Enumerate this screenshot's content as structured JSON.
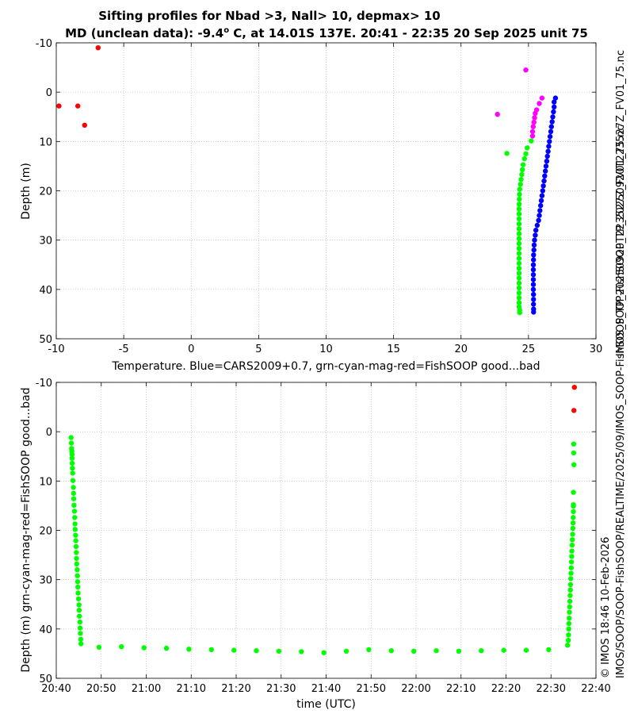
{
  "title_line1": "Sifting profiles for Nbad >3, Nall> 10, depmax> 10",
  "title_line2_prefix": "MD (unclean data): -9.4",
  "title_line2_degree": "o",
  "title_line2_suffix": " C, at 14.01S 137E. 20:41 - 22:35 20 Sep 2025 unit 75",
  "side_right_top": "IMOS_SOOP-FishSOOP_TP_20250920T223527Z_FV01_75.nc",
  "side_right_bottom_1": "© IMOS 18:46 10-Feb-2026",
  "side_right_bottom_2": "IMOS/SOOP/SOOP-FishSOOP/REALTIME/2025/09/IMOS_SOOP-FishSOOP_TP_20250920T223527Z_FV01_75.nc",
  "colors": {
    "blue": "#0000ff",
    "green": "#00ff00",
    "magenta": "#ff00ff",
    "red": "#ff0000",
    "grid": "#b0b0b0"
  },
  "chart_data": [
    {
      "type": "scatter",
      "title": "",
      "xlabel": "Temperature. Blue=CARS2009+0.7, grn-cyan-mag-red=FishSOOP good...bad",
      "ylabel": "Depth (m)",
      "xlim": [
        -10,
        30
      ],
      "ylim": [
        50,
        -10
      ],
      "xticks": [
        -10,
        -5,
        0,
        5,
        10,
        15,
        20,
        25,
        30
      ],
      "xticklabels": [
        "-10",
        "-5",
        "0",
        "5",
        "10",
        "15",
        "20",
        "25",
        "30"
      ],
      "yticks": [
        -10,
        0,
        10,
        20,
        30,
        40,
        50
      ],
      "yticklabels": [
        "-10",
        "0",
        "10",
        "20",
        "30",
        "40",
        "50"
      ],
      "grid": true,
      "series": [
        {
          "name": "CARS2009+0.7",
          "color": "blue",
          "points": [
            [
              27.0,
              1.2
            ],
            [
              26.9,
              2.0
            ],
            [
              26.9,
              3.0
            ],
            [
              26.85,
              4.0
            ],
            [
              26.8,
              5.0
            ],
            [
              26.75,
              6.0
            ],
            [
              26.7,
              7.0
            ],
            [
              26.65,
              8.0
            ],
            [
              26.6,
              9.0
            ],
            [
              26.55,
              10.0
            ],
            [
              26.5,
              11.0
            ],
            [
              26.45,
              12.0
            ],
            [
              26.4,
              13.0
            ],
            [
              26.35,
              14.0
            ],
            [
              26.3,
              15.0
            ],
            [
              26.25,
              16.0
            ],
            [
              26.2,
              17.0
            ],
            [
              26.15,
              18.0
            ],
            [
              26.1,
              19.0
            ],
            [
              26.05,
              20.0
            ],
            [
              26.0,
              21.0
            ],
            [
              25.95,
              22.0
            ],
            [
              25.9,
              23.0
            ],
            [
              25.85,
              24.0
            ],
            [
              25.8,
              25.0
            ],
            [
              25.75,
              26.0
            ],
            [
              25.65,
              27.0
            ],
            [
              25.55,
              28.0
            ],
            [
              25.5,
              29.0
            ],
            [
              25.45,
              30.0
            ],
            [
              25.42,
              31.0
            ],
            [
              25.4,
              32.0
            ],
            [
              25.38,
              33.0
            ],
            [
              25.37,
              34.0
            ],
            [
              25.36,
              35.0
            ],
            [
              25.36,
              36.0
            ],
            [
              25.36,
              37.0
            ],
            [
              25.36,
              38.0
            ],
            [
              25.36,
              39.0
            ],
            [
              25.36,
              40.0
            ],
            [
              25.37,
              41.0
            ],
            [
              25.37,
              42.0
            ],
            [
              25.37,
              43.0
            ],
            [
              25.38,
              44.0
            ],
            [
              25.38,
              44.6
            ]
          ]
        },
        {
          "name": "FishSOOP good",
          "color": "green",
          "points": [
            [
              23.4,
              12.4
            ],
            [
              24.9,
              11.3
            ],
            [
              24.8,
              12.5
            ],
            [
              24.7,
              13.5
            ],
            [
              24.6,
              14.7
            ],
            [
              24.55,
              15.7
            ],
            [
              24.5,
              16.7
            ],
            [
              24.45,
              17.7
            ],
            [
              24.4,
              18.7
            ],
            [
              24.35,
              19.7
            ],
            [
              24.33,
              20.7
            ],
            [
              24.32,
              21.7
            ],
            [
              24.31,
              22.7
            ],
            [
              24.3,
              23.7
            ],
            [
              24.3,
              24.7
            ],
            [
              24.3,
              25.7
            ],
            [
              24.3,
              26.7
            ],
            [
              24.3,
              27.7
            ],
            [
              24.3,
              28.7
            ],
            [
              24.3,
              29.7
            ],
            [
              24.3,
              30.7
            ],
            [
              24.3,
              31.7
            ],
            [
              24.3,
              32.7
            ],
            [
              24.3,
              33.7
            ],
            [
              24.3,
              34.7
            ],
            [
              24.3,
              35.7
            ],
            [
              24.3,
              36.7
            ],
            [
              24.3,
              37.7
            ],
            [
              24.3,
              38.7
            ],
            [
              24.3,
              39.7
            ],
            [
              24.3,
              40.7
            ],
            [
              24.3,
              41.7
            ],
            [
              24.3,
              42.7
            ],
            [
              24.3,
              43.5
            ],
            [
              24.35,
              44.2
            ],
            [
              24.35,
              44.7
            ],
            [
              25.2,
              9.9
            ]
          ]
        },
        {
          "name": "FishSOOP mag",
          "color": "magenta",
          "points": [
            [
              24.8,
              -4.5
            ],
            [
              22.7,
              4.5
            ],
            [
              26.0,
              1.2
            ],
            [
              25.8,
              2.3
            ],
            [
              25.6,
              3.6
            ],
            [
              25.5,
              4.3
            ],
            [
              25.45,
              5.2
            ],
            [
              25.4,
              6.1
            ],
            [
              25.35,
              7.0
            ],
            [
              25.3,
              8.0
            ],
            [
              25.3,
              8.9
            ]
          ]
        },
        {
          "name": "FishSOOP bad",
          "color": "red",
          "points": [
            [
              -6.9,
              -9.0
            ],
            [
              -9.8,
              2.8
            ],
            [
              -8.4,
              2.8
            ],
            [
              -7.9,
              6.7
            ]
          ]
        }
      ]
    },
    {
      "type": "scatter",
      "title": "",
      "xlabel": "time (UTC)",
      "ylabel": "Depth (m) grn-cyan-mag-red=FishSOOP good...bad",
      "xlim": [
        0,
        120
      ],
      "ylim": [
        50,
        -10
      ],
      "xticks": [
        0,
        10,
        20,
        30,
        40,
        50,
        60,
        70,
        80,
        90,
        100,
        110,
        120
      ],
      "xticklabels": [
        "20:40",
        "20:50",
        "21:00",
        "21:10",
        "21:20",
        "21:30",
        "21:40",
        "21:50",
        "22:00",
        "22:10",
        "22:20",
        "22:30",
        "22:40"
      ],
      "yticks": [
        -10,
        0,
        10,
        20,
        30,
        40,
        50
      ],
      "yticklabels": [
        "-10",
        "0",
        "10",
        "20",
        "30",
        "40",
        "50"
      ],
      "grid": true,
      "series": [
        {
          "name": "FishSOOP good",
          "color": "green",
          "points": [
            [
              3.3,
              1.2
            ],
            [
              3.35,
              2.3
            ],
            [
              3.4,
              3.4
            ],
            [
              3.45,
              4.0
            ],
            [
              3.5,
              4.6
            ],
            [
              3.5,
              5.4
            ],
            [
              3.55,
              6.4
            ],
            [
              3.6,
              7.4
            ],
            [
              3.65,
              8.4
            ],
            [
              3.7,
              9.9
            ],
            [
              3.8,
              11.3
            ],
            [
              3.85,
              12.5
            ],
            [
              3.9,
              13.6
            ],
            [
              3.95,
              14.9
            ],
            [
              4.05,
              16.1
            ],
            [
              4.1,
              17.4
            ],
            [
              4.15,
              18.7
            ],
            [
              4.2,
              19.8
            ],
            [
              4.3,
              21.0
            ],
            [
              4.35,
              22.1
            ],
            [
              4.4,
              23.3
            ],
            [
              4.45,
              24.5
            ],
            [
              4.5,
              25.7
            ],
            [
              4.55,
              26.8
            ],
            [
              4.65,
              28.0
            ],
            [
              4.7,
              29.2
            ],
            [
              4.75,
              30.4
            ],
            [
              4.8,
              31.5
            ],
            [
              4.85,
              32.7
            ],
            [
              4.95,
              33.9
            ],
            [
              5.05,
              35.1
            ],
            [
              5.1,
              36.2
            ],
            [
              5.15,
              37.4
            ],
            [
              5.25,
              38.6
            ],
            [
              5.3,
              39.8
            ],
            [
              5.35,
              40.9
            ],
            [
              5.45,
              42.1
            ],
            [
              5.5,
              43.0
            ],
            [
              9.5,
              43.7
            ],
            [
              14.5,
              43.6
            ],
            [
              19.5,
              43.8
            ],
            [
              24.5,
              43.9
            ],
            [
              29.5,
              44.1
            ],
            [
              34.5,
              44.2
            ],
            [
              39.5,
              44.3
            ],
            [
              44.5,
              44.4
            ],
            [
              49.5,
              44.5
            ],
            [
              54.5,
              44.6
            ],
            [
              59.5,
              44.8
            ],
            [
              64.5,
              44.5
            ],
            [
              69.5,
              44.2
            ],
            [
              74.5,
              44.4
            ],
            [
              79.5,
              44.5
            ],
            [
              84.5,
              44.4
            ],
            [
              89.5,
              44.5
            ],
            [
              94.5,
              44.4
            ],
            [
              99.5,
              44.3
            ],
            [
              104.5,
              44.3
            ],
            [
              109.5,
              44.2
            ],
            [
              113.7,
              43.3
            ],
            [
              113.85,
              42.3
            ],
            [
              113.9,
              41.2
            ],
            [
              113.95,
              40.0
            ],
            [
              114.0,
              38.9
            ],
            [
              114.05,
              37.8
            ],
            [
              114.1,
              36.6
            ],
            [
              114.15,
              35.5
            ],
            [
              114.2,
              34.4
            ],
            [
              114.25,
              33.2
            ],
            [
              114.3,
              32.1
            ],
            [
              114.35,
              31.0
            ],
            [
              114.4,
              29.8
            ],
            [
              114.45,
              28.7
            ],
            [
              114.5,
              27.6
            ],
            [
              114.55,
              26.4
            ],
            [
              114.6,
              25.3
            ],
            [
              114.65,
              24.2
            ],
            [
              114.7,
              23.0
            ],
            [
              114.75,
              21.9
            ],
            [
              114.8,
              20.8
            ],
            [
              114.85,
              19.6
            ],
            [
              114.9,
              18.5
            ],
            [
              114.95,
              17.4
            ],
            [
              114.97,
              16.2
            ],
            [
              114.98,
              15.1
            ],
            [
              115.0,
              14.8
            ],
            [
              115.0,
              12.3
            ],
            [
              115.1,
              6.7
            ],
            [
              115.05,
              4.3
            ],
            [
              115.05,
              2.5
            ]
          ]
        },
        {
          "name": "FishSOOP bad",
          "color": "red",
          "points": [
            [
              115.2,
              -9.0
            ],
            [
              115.1,
              -4.3
            ]
          ]
        }
      ]
    }
  ]
}
